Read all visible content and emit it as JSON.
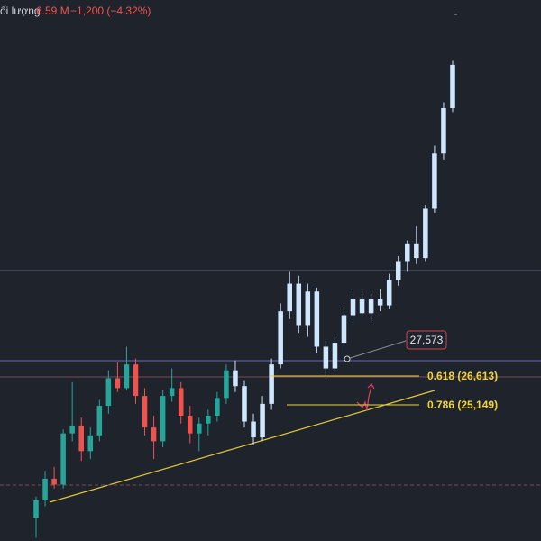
{
  "chart_data": {
    "type": "candlestick",
    "header": {
      "label": "ối lượng",
      "volume": "6.59 M",
      "change": "−1,200 (−4.32%)"
    },
    "ylim": [
      18240,
      45690
    ],
    "up_color": "#26a69a",
    "down_color": "#ef5350",
    "highlight_color": "#cfe6ff",
    "highlight_start": 22,
    "candles": [
      [
        19400,
        20500,
        18400,
        20300
      ],
      [
        20300,
        21800,
        20000,
        21400
      ],
      [
        21400,
        22000,
        20900,
        21100
      ],
      [
        21100,
        23900,
        20900,
        23700
      ],
      [
        23700,
        26300,
        23300,
        24100
      ],
      [
        24100,
        24500,
        22300,
        22800
      ],
      [
        22800,
        24000,
        22400,
        23600
      ],
      [
        23600,
        25400,
        23300,
        25100
      ],
      [
        25100,
        26900,
        24700,
        26500
      ],
      [
        26500,
        27300,
        25800,
        26000
      ],
      [
        26000,
        28100,
        25900,
        27200
      ],
      [
        27200,
        27500,
        25200,
        25600
      ],
      [
        25600,
        26000,
        23600,
        24000
      ],
      [
        24000,
        24600,
        22400,
        23300
      ],
      [
        23300,
        25900,
        23000,
        25600
      ],
      [
        25600,
        27000,
        25300,
        26000
      ],
      [
        26000,
        26300,
        24200,
        24600
      ],
      [
        24600,
        25100,
        23200,
        23700
      ],
      [
        23700,
        24500,
        22800,
        24200
      ],
      [
        24200,
        24900,
        23600,
        24600
      ],
      [
        24600,
        25800,
        24300,
        25500
      ],
      [
        25500,
        27200,
        25200,
        26900
      ],
      [
        26900,
        27400,
        25800,
        26100
      ],
      [
        26100,
        26400,
        24000,
        24300
      ],
      [
        24300,
        24700,
        23100,
        23500
      ],
      [
        23500,
        25600,
        23300,
        25200
      ],
      [
        25200,
        27500,
        24900,
        27200
      ],
      [
        27200,
        30300,
        27000,
        29900
      ],
      [
        29900,
        31900,
        29500,
        31300
      ],
      [
        31300,
        31700,
        28800,
        29200
      ],
      [
        29200,
        31300,
        28600,
        30900
      ],
      [
        30900,
        31100,
        27800,
        28100
      ],
      [
        28100,
        28400,
        26600,
        27000
      ],
      [
        27000,
        28600,
        26800,
        28300
      ],
      [
        28300,
        30000,
        27600,
        29700
      ],
      [
        29700,
        30900,
        29300,
        30500
      ],
      [
        30500,
        30900,
        29600,
        29800
      ],
      [
        29800,
        30800,
        29400,
        30500
      ],
      [
        30500,
        31000,
        29900,
        30200
      ],
      [
        30200,
        31800,
        30000,
        31500
      ],
      [
        31500,
        32700,
        31200,
        32400
      ],
      [
        32400,
        33500,
        31900,
        33300
      ],
      [
        33300,
        34200,
        32300,
        32600
      ],
      [
        32600,
        35300,
        32400,
        35100
      ],
      [
        35100,
        38300,
        34900,
        37900
      ],
      [
        37900,
        40500,
        37600,
        40200
      ],
      [
        40200,
        42600,
        40000,
        42400
      ]
    ],
    "levels": [
      {
        "value": 31966,
        "color": "#5d6170",
        "dash": false
      },
      {
        "value": 27391,
        "color": "#6b66c9",
        "dash": false
      },
      {
        "value": 26567,
        "color": "#7a4a5a",
        "dash": false
      },
      {
        "value": 21077,
        "color": "#7a4a5a",
        "dash": true
      }
    ],
    "fib": [
      {
        "label": "0.618 (26,613)",
        "value": 26613
      },
      {
        "label": "0.786 (25,149)",
        "value": 25149
      }
    ],
    "fib_color": "#f0d43a",
    "price_label": {
      "label": "27,573",
      "value": 27573
    }
  }
}
